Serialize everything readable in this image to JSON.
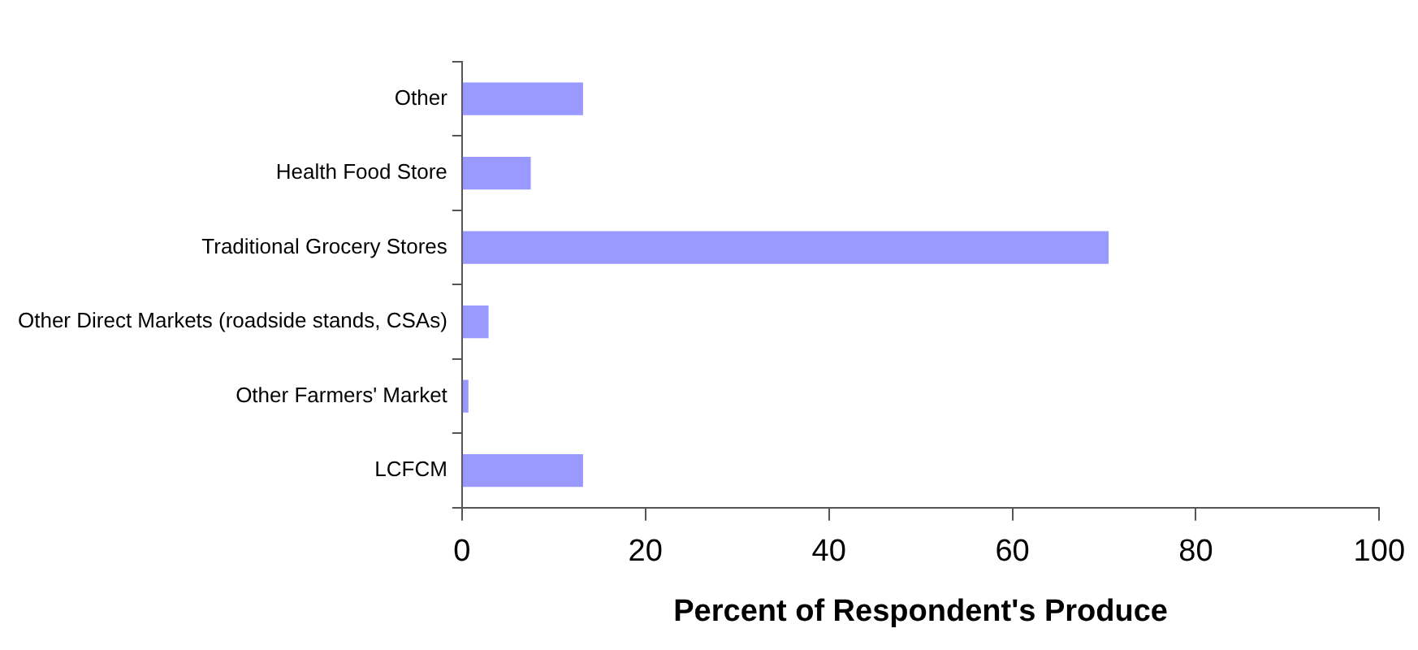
{
  "chart_data": {
    "type": "bar",
    "orientation": "horizontal",
    "xlabel": "Percent of Respondent's Produce",
    "categories": [
      "Other",
      "Health Food Store",
      "Traditional Grocery Stores",
      "Other Direct Markets (roadside stands, CSAs)",
      "Other Farmers' Market",
      "LCFCM"
    ],
    "values": [
      13.2,
      7.5,
      70.5,
      2.9,
      0.7,
      13.2
    ],
    "color": "#9999ff",
    "xlim": [
      0,
      100
    ],
    "xticks": [
      0,
      20,
      40,
      60,
      80,
      100
    ],
    "grid": false,
    "legend": false
  }
}
